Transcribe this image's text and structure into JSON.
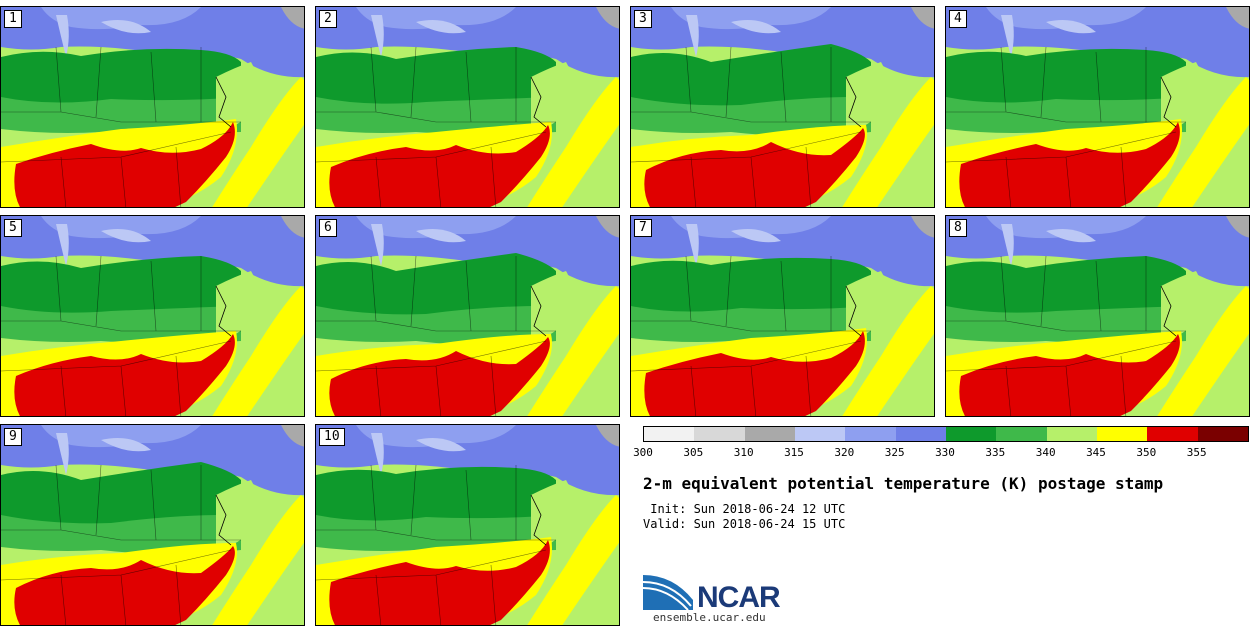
{
  "panels": [
    {
      "label": "1"
    },
    {
      "label": "2"
    },
    {
      "label": "3"
    },
    {
      "label": "4"
    },
    {
      "label": "5"
    },
    {
      "label": "6"
    },
    {
      "label": "7"
    },
    {
      "label": "8"
    },
    {
      "label": "9"
    },
    {
      "label": "10"
    }
  ],
  "legend": {
    "ticks": [
      "300",
      "305",
      "310",
      "315",
      "320",
      "325",
      "330",
      "335",
      "340",
      "345",
      "350",
      "355"
    ],
    "colors": [
      "#f2f2f2",
      "#d8d8d8",
      "#a9a9a9",
      "#bcc8f5",
      "#8e9ff0",
      "#6f7fe8",
      "#0e9a2c",
      "#3fb94a",
      "#b6f06a",
      "#ffff00",
      "#e00000",
      "#7a0000"
    ]
  },
  "title": "2-m equivalent potential temperature (K) postage stamp",
  "init_line": " Init: Sun 2018-06-24 12 UTC",
  "valid_line": "Valid: Sun 2018-06-24 15 UTC",
  "logo": {
    "name": "NCAR",
    "url": "ensemble.ucar.edu"
  }
}
